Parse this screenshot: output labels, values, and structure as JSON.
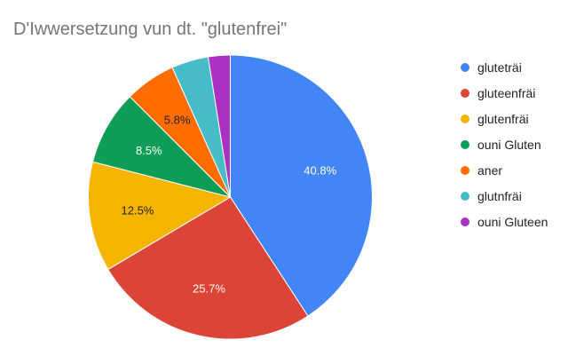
{
  "chart_data": {
    "type": "pie",
    "title": "D'Iwwersetzung vun dt. \"glutenfrei\"",
    "legend_position": "right",
    "slices": [
      {
        "label": "gluteträi",
        "value": 40.8,
        "value_label": "40.8%",
        "color": "#4285F4",
        "label_color": "#ffffff"
      },
      {
        "label": "gluteenfräi",
        "value": 25.7,
        "value_label": "25.7%",
        "color": "#DB4437",
        "label_color": "#ffffff"
      },
      {
        "label": "glutenfräi",
        "value": 12.5,
        "value_label": "12.5%",
        "color": "#F4B400",
        "label_color": "#222222"
      },
      {
        "label": "ouni Gluten",
        "value": 8.5,
        "value_label": "8.5%",
        "color": "#0F9D58",
        "label_color": "#ffffff"
      },
      {
        "label": "aner",
        "value": 5.8,
        "value_label": "5.8%",
        "color": "#FF6D01",
        "label_color": "#222222"
      },
      {
        "label": "glutnfräi",
        "value": 4.2,
        "value_label": "",
        "color": "#46BDC6",
        "label_color": "#ffffff"
      },
      {
        "label": "ouni Gluteen",
        "value": 2.5,
        "value_label": "",
        "color": "#AB30C4",
        "label_color": "#ffffff"
      }
    ]
  }
}
